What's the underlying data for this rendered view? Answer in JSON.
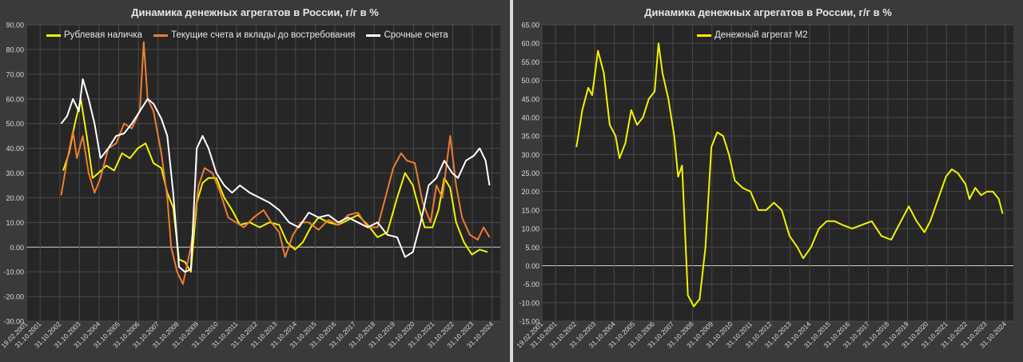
{
  "chart_data": [
    {
      "type": "line",
      "title": "Динамика денежных агрегатов  в России, г/г в %",
      "xlabel": "",
      "ylabel": "",
      "ylim": [
        -30,
        90
      ],
      "y_ticks": [
        "90.00",
        "80.00",
        "70.00",
        "60.00",
        "50.00",
        "40.00",
        "30.00",
        "20.00",
        "10.00",
        "0.00",
        "-10.00",
        "-20.00",
        "-30.00"
      ],
      "x_ticks": [
        "19.02.2001",
        "31.10.2001",
        "31.10.2002",
        "31.10.2003",
        "31.10.2004",
        "31.10.2005",
        "31.10.2006",
        "31.10.2007",
        "31.10.2008",
        "31.10.2009",
        "31.10.2010",
        "31.10.2011",
        "31.10.2012",
        "31.10.2013",
        "31.10.2014",
        "31.10.2015",
        "31.10.2016",
        "31.10.2017",
        "31.10.2018",
        "31.10.2019",
        "31.10.2020",
        "31.10.2021",
        "31.10.2022",
        "31.10.2023",
        "31.10.2024"
      ],
      "legend": "top-left",
      "grid": true,
      "series": [
        {
          "name": "Рублевая наличка",
          "color": "#f2f200",
          "points": [
            [
              2003,
              31
            ],
            [
              2003.3,
              38
            ],
            [
              2003.6,
              50
            ],
            [
              2003.9,
              60
            ],
            [
              2004.2,
              45
            ],
            [
              2004.5,
              28
            ],
            [
              2004.8,
              30
            ],
            [
              2005.2,
              33
            ],
            [
              2005.6,
              31
            ],
            [
              2006,
              38
            ],
            [
              2006.4,
              36
            ],
            [
              2006.8,
              40
            ],
            [
              2007.2,
              42
            ],
            [
              2007.6,
              34
            ],
            [
              2008,
              32
            ],
            [
              2008.3,
              22
            ],
            [
              2008.6,
              16
            ],
            [
              2008.9,
              -5
            ],
            [
              2009.2,
              -6
            ],
            [
              2009.5,
              -10
            ],
            [
              2009.8,
              18
            ],
            [
              2010.1,
              26
            ],
            [
              2010.4,
              28
            ],
            [
              2010.8,
              28
            ],
            [
              2011.2,
              20
            ],
            [
              2011.6,
              15
            ],
            [
              2012,
              9
            ],
            [
              2012.5,
              10
            ],
            [
              2013,
              8
            ],
            [
              2013.5,
              10
            ],
            [
              2014,
              9
            ],
            [
              2014.4,
              2
            ],
            [
              2014.8,
              -1
            ],
            [
              2015.2,
              2
            ],
            [
              2015.6,
              8
            ],
            [
              2016,
              12
            ],
            [
              2016.5,
              10
            ],
            [
              2017,
              9
            ],
            [
              2017.5,
              11
            ],
            [
              2018,
              13
            ],
            [
              2018.5,
              9
            ],
            [
              2019,
              4
            ],
            [
              2019.5,
              6
            ],
            [
              2020,
              20
            ],
            [
              2020.4,
              30
            ],
            [
              2020.8,
              25
            ],
            [
              2021.1,
              16
            ],
            [
              2021.4,
              8
            ],
            [
              2021.8,
              8
            ],
            [
              2022.1,
              15
            ],
            [
              2022.4,
              28
            ],
            [
              2022.7,
              24
            ],
            [
              2023,
              10
            ],
            [
              2023.4,
              2
            ],
            [
              2023.8,
              -3
            ],
            [
              2024.2,
              -1
            ],
            [
              2024.6,
              -2
            ]
          ]
        },
        {
          "name": "Текущие счета и вклады до востребования",
          "color": "#ed7d31",
          "points": [
            [
              2002.9,
              21
            ],
            [
              2003.2,
              35
            ],
            [
              2003.5,
              47
            ],
            [
              2003.7,
              36
            ],
            [
              2004,
              45
            ],
            [
              2004.3,
              30
            ],
            [
              2004.6,
              22
            ],
            [
              2004.9,
              28
            ],
            [
              2005.3,
              40
            ],
            [
              2005.7,
              42
            ],
            [
              2006.1,
              50
            ],
            [
              2006.5,
              48
            ],
            [
              2006.9,
              55
            ],
            [
              2007.1,
              83
            ],
            [
              2007.3,
              60
            ],
            [
              2007.6,
              55
            ],
            [
              2008,
              38
            ],
            [
              2008.3,
              20
            ],
            [
              2008.5,
              0
            ],
            [
              2008.8,
              -10
            ],
            [
              2009.1,
              -15
            ],
            [
              2009.5,
              0
            ],
            [
              2009.9,
              25
            ],
            [
              2010.2,
              32
            ],
            [
              2010.6,
              30
            ],
            [
              2011,
              22
            ],
            [
              2011.4,
              12
            ],
            [
              2011.8,
              10
            ],
            [
              2012.2,
              8
            ],
            [
              2012.7,
              12
            ],
            [
              2013.2,
              15
            ],
            [
              2013.6,
              10
            ],
            [
              2014,
              6
            ],
            [
              2014.3,
              -4
            ],
            [
              2014.7,
              5
            ],
            [
              2015.1,
              10
            ],
            [
              2015.5,
              10
            ],
            [
              2016,
              7
            ],
            [
              2016.5,
              11
            ],
            [
              2017,
              9
            ],
            [
              2017.5,
              13
            ],
            [
              2018,
              14
            ],
            [
              2018.5,
              8
            ],
            [
              2019,
              8
            ],
            [
              2019.4,
              20
            ],
            [
              2019.8,
              32
            ],
            [
              2020.2,
              38
            ],
            [
              2020.5,
              35
            ],
            [
              2020.9,
              34
            ],
            [
              2021.3,
              18
            ],
            [
              2021.7,
              10
            ],
            [
              2022,
              25
            ],
            [
              2022.3,
              20
            ],
            [
              2022.7,
              45
            ],
            [
              2023,
              25
            ],
            [
              2023.3,
              12
            ],
            [
              2023.7,
              5
            ],
            [
              2024.1,
              3
            ],
            [
              2024.4,
              8
            ],
            [
              2024.7,
              4
            ]
          ]
        },
        {
          "name": "Срочные счета",
          "color": "#ffffff",
          "points": [
            [
              2002.9,
              50
            ],
            [
              2003.2,
              53
            ],
            [
              2003.5,
              60
            ],
            [
              2003.8,
              55
            ],
            [
              2004,
              68
            ],
            [
              2004.3,
              60
            ],
            [
              2004.6,
              50
            ],
            [
              2004.9,
              36
            ],
            [
              2005.3,
              40
            ],
            [
              2005.7,
              45
            ],
            [
              2006.1,
              46
            ],
            [
              2006.5,
              50
            ],
            [
              2006.9,
              55
            ],
            [
              2007.3,
              60
            ],
            [
              2007.6,
              58
            ],
            [
              2008,
              52
            ],
            [
              2008.3,
              45
            ],
            [
              2008.6,
              22
            ],
            [
              2008.9,
              -8
            ],
            [
              2009.2,
              -10
            ],
            [
              2009.5,
              -9
            ],
            [
              2009.8,
              40
            ],
            [
              2010.1,
              45
            ],
            [
              2010.4,
              40
            ],
            [
              2010.8,
              30
            ],
            [
              2011.2,
              25
            ],
            [
              2011.6,
              22
            ],
            [
              2012,
              25
            ],
            [
              2012.5,
              22
            ],
            [
              2013,
              20
            ],
            [
              2013.5,
              18
            ],
            [
              2014,
              15
            ],
            [
              2014.5,
              10
            ],
            [
              2015,
              8
            ],
            [
              2015.5,
              14
            ],
            [
              2016,
              12
            ],
            [
              2016.5,
              13
            ],
            [
              2017,
              10
            ],
            [
              2017.5,
              12
            ],
            [
              2018,
              10
            ],
            [
              2018.5,
              8
            ],
            [
              2019,
              10
            ],
            [
              2019.5,
              5
            ],
            [
              2020,
              4
            ],
            [
              2020.4,
              -4
            ],
            [
              2020.8,
              -2
            ],
            [
              2021.2,
              10
            ],
            [
              2021.6,
              25
            ],
            [
              2022,
              28
            ],
            [
              2022.4,
              35
            ],
            [
              2022.8,
              30
            ],
            [
              2023.1,
              28
            ],
            [
              2023.5,
              35
            ],
            [
              2023.9,
              37
            ],
            [
              2024.2,
              40
            ],
            [
              2024.5,
              35
            ],
            [
              2024.7,
              25
            ]
          ]
        }
      ]
    },
    {
      "type": "line",
      "title": "Динамика денежных агрегатов  в России, г/г в %",
      "xlabel": "",
      "ylabel": "",
      "ylim": [
        -15,
        65
      ],
      "y_ticks": [
        "65.00",
        "60.00",
        "55.00",
        "50.00",
        "45.00",
        "40.00",
        "35.00",
        "30.00",
        "25.00",
        "20.00",
        "15.00",
        "10.00",
        "5.00",
        "0.00",
        "-5.00",
        "-10.00",
        "-15.00"
      ],
      "x_ticks": [
        "19.02.2001",
        "31.10.2001",
        "31.10.2002",
        "31.10.2003",
        "31.10.2004",
        "31.10.2005",
        "31.10.2006",
        "31.10.2007",
        "31.10.2008",
        "31.10.2009",
        "31.10.2010",
        "31.10.2011",
        "31.10.2012",
        "31.10.2013",
        "31.10.2014",
        "31.10.2015",
        "31.10.2016",
        "31.10.2017",
        "31.10.2018",
        "31.10.2019",
        "31.10.2020",
        "31.10.2021",
        "31.10.2022",
        "31.10.2023",
        "31.10.2024"
      ],
      "legend": "top-left",
      "grid": true,
      "series": [
        {
          "name": "Денежный агрегат М2",
          "color": "#f2f200",
          "points": [
            [
              2002.9,
              32
            ],
            [
              2003.2,
              42
            ],
            [
              2003.5,
              48
            ],
            [
              2003.7,
              46
            ],
            [
              2004,
              58
            ],
            [
              2004.3,
              52
            ],
            [
              2004.6,
              38
            ],
            [
              2004.9,
              35
            ],
            [
              2005.1,
              29
            ],
            [
              2005.4,
              33
            ],
            [
              2005.7,
              42
            ],
            [
              2006,
              38
            ],
            [
              2006.3,
              40
            ],
            [
              2006.6,
              45
            ],
            [
              2006.9,
              47
            ],
            [
              2007.1,
              60
            ],
            [
              2007.3,
              52
            ],
            [
              2007.6,
              45
            ],
            [
              2007.9,
              35
            ],
            [
              2008.1,
              24
            ],
            [
              2008.3,
              27
            ],
            [
              2008.6,
              -8
            ],
            [
              2008.9,
              -11
            ],
            [
              2009.2,
              -9
            ],
            [
              2009.5,
              5
            ],
            [
              2009.8,
              32
            ],
            [
              2010.1,
              36
            ],
            [
              2010.4,
              35
            ],
            [
              2010.7,
              30
            ],
            [
              2011,
              23
            ],
            [
              2011.4,
              21
            ],
            [
              2011.8,
              20
            ],
            [
              2012.2,
              15
            ],
            [
              2012.6,
              15
            ],
            [
              2013,
              17
            ],
            [
              2013.4,
              15
            ],
            [
              2013.8,
              8
            ],
            [
              2014.2,
              5
            ],
            [
              2014.5,
              2
            ],
            [
              2014.9,
              5
            ],
            [
              2015.3,
              10
            ],
            [
              2015.7,
              12
            ],
            [
              2016.1,
              12
            ],
            [
              2016.5,
              11
            ],
            [
              2017,
              10
            ],
            [
              2017.5,
              11
            ],
            [
              2018,
              12
            ],
            [
              2018.5,
              8
            ],
            [
              2019,
              7
            ],
            [
              2019.5,
              12
            ],
            [
              2019.9,
              16
            ],
            [
              2020.3,
              12
            ],
            [
              2020.7,
              9
            ],
            [
              2021,
              12
            ],
            [
              2021.4,
              18
            ],
            [
              2021.8,
              24
            ],
            [
              2022.1,
              26
            ],
            [
              2022.4,
              25
            ],
            [
              2022.8,
              22
            ],
            [
              2023,
              18
            ],
            [
              2023.3,
              21
            ],
            [
              2023.6,
              19
            ],
            [
              2023.9,
              20
            ],
            [
              2024.2,
              20
            ],
            [
              2024.5,
              18
            ],
            [
              2024.7,
              14
            ]
          ]
        }
      ]
    }
  ]
}
